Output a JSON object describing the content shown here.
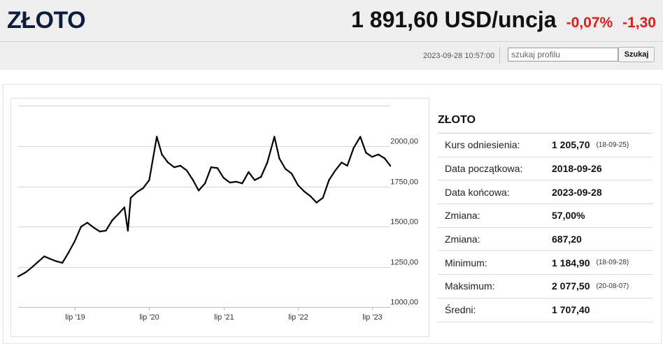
{
  "header": {
    "title": "ZŁOTO",
    "price": "1 891,60 USD/uncja",
    "change_pct": "-0,07%",
    "change_abs": "-1,30",
    "timestamp": "2023-09-28 10:57:00",
    "search_placeholder": "szukaj profilu",
    "search_button": "Szukaj"
  },
  "colors": {
    "brand_title": "#0c1d3d",
    "negative": "#e11b1b",
    "header_bg": "#eeeeee"
  },
  "info": {
    "title": "ZŁOTO",
    "rows": [
      {
        "label": "Kurs odniesienia:",
        "value": "1 205,70",
        "date": "(18-09-25)"
      },
      {
        "label": "Data początkowa:",
        "value": "2018-09-26",
        "date": ""
      },
      {
        "label": "Data końcowa:",
        "value": "2023-09-28",
        "date": ""
      },
      {
        "label": "Zmiana:",
        "value": "57,00%",
        "date": ""
      },
      {
        "label": "Zmiana:",
        "value": "687,20",
        "date": ""
      },
      {
        "label": "Minimum:",
        "value": "1 184,90",
        "date": "(18-09-28)"
      },
      {
        "label": "Maksimum:",
        "value": "2 077,50",
        "date": "(20-08-07)"
      },
      {
        "label": "Średni:",
        "value": "1 707,40",
        "date": ""
      }
    ]
  },
  "chart_data": {
    "type": "line",
    "title": "",
    "xlabel": "",
    "ylabel": "",
    "ylim": [
      1000,
      2000
    ],
    "y_ticks": [
      {
        "value": 2000,
        "label": "2000,00"
      },
      {
        "value": 1750,
        "label": "1750,00"
      },
      {
        "value": 1500,
        "label": "1500,00"
      },
      {
        "value": 1250,
        "label": "1250,00"
      },
      {
        "value": 1000,
        "label": "1000,00"
      }
    ],
    "x_ticks": [
      {
        "date": "2019-07-01",
        "label": "lip '19"
      },
      {
        "date": "2020-07-01",
        "label": "lip '20"
      },
      {
        "date": "2021-07-01",
        "label": "lip '21"
      },
      {
        "date": "2022-07-01",
        "label": "lip '22"
      },
      {
        "date": "2023-07-01",
        "label": "lip '23"
      }
    ],
    "grid": true,
    "legend": "none",
    "series": [
      {
        "color": "#000000",
        "points": [
          [
            "2018-09-26",
            1190
          ],
          [
            "2018-11-01",
            1215
          ],
          [
            "2018-12-01",
            1245
          ],
          [
            "2019-01-01",
            1280
          ],
          [
            "2019-02-01",
            1315
          ],
          [
            "2019-03-01",
            1300
          ],
          [
            "2019-04-01",
            1285
          ],
          [
            "2019-05-01",
            1275
          ],
          [
            "2019-06-01",
            1340
          ],
          [
            "2019-07-01",
            1410
          ],
          [
            "2019-08-01",
            1500
          ],
          [
            "2019-09-01",
            1525
          ],
          [
            "2019-10-01",
            1495
          ],
          [
            "2019-11-01",
            1470
          ],
          [
            "2019-12-01",
            1475
          ],
          [
            "2020-01-01",
            1540
          ],
          [
            "2020-02-01",
            1580
          ],
          [
            "2020-03-01",
            1620
          ],
          [
            "2020-03-18",
            1475
          ],
          [
            "2020-04-01",
            1680
          ],
          [
            "2020-05-01",
            1715
          ],
          [
            "2020-06-01",
            1740
          ],
          [
            "2020-07-01",
            1790
          ],
          [
            "2020-08-07",
            2060
          ],
          [
            "2020-09-01",
            1950
          ],
          [
            "2020-10-01",
            1900
          ],
          [
            "2020-11-01",
            1870
          ],
          [
            "2020-12-01",
            1880
          ],
          [
            "2021-01-01",
            1850
          ],
          [
            "2021-02-01",
            1790
          ],
          [
            "2021-03-01",
            1725
          ],
          [
            "2021-04-01",
            1770
          ],
          [
            "2021-05-01",
            1870
          ],
          [
            "2021-06-01",
            1865
          ],
          [
            "2021-07-01",
            1805
          ],
          [
            "2021-08-01",
            1775
          ],
          [
            "2021-09-01",
            1780
          ],
          [
            "2021-10-01",
            1770
          ],
          [
            "2021-11-01",
            1840
          ],
          [
            "2021-12-01",
            1790
          ],
          [
            "2022-01-01",
            1810
          ],
          [
            "2022-02-01",
            1900
          ],
          [
            "2022-03-08",
            2060
          ],
          [
            "2022-04-01",
            1925
          ],
          [
            "2022-05-01",
            1860
          ],
          [
            "2022-06-01",
            1830
          ],
          [
            "2022-07-01",
            1760
          ],
          [
            "2022-08-01",
            1720
          ],
          [
            "2022-09-01",
            1690
          ],
          [
            "2022-10-01",
            1650
          ],
          [
            "2022-11-01",
            1680
          ],
          [
            "2022-12-01",
            1790
          ],
          [
            "2023-01-01",
            1850
          ],
          [
            "2023-02-01",
            1900
          ],
          [
            "2023-03-01",
            1880
          ],
          [
            "2023-04-01",
            1990
          ],
          [
            "2023-05-04",
            2060
          ],
          [
            "2023-06-01",
            1960
          ],
          [
            "2023-07-01",
            1935
          ],
          [
            "2023-08-01",
            1950
          ],
          [
            "2023-09-01",
            1925
          ],
          [
            "2023-09-28",
            1880
          ]
        ]
      }
    ]
  }
}
